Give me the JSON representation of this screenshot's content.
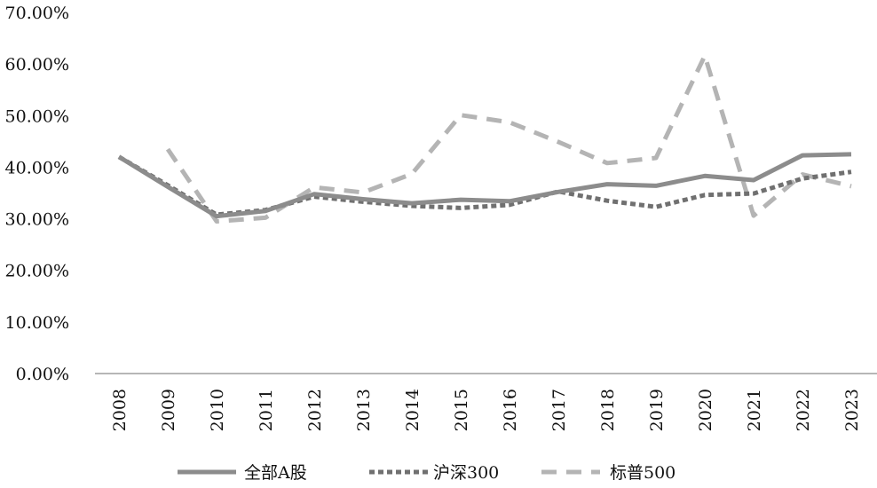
{
  "chart_data": {
    "type": "line",
    "categories": [
      "2008",
      "2009",
      "2010",
      "2011",
      "2012",
      "2013",
      "2014",
      "2015",
      "2016",
      "2017",
      "2018",
      "2019",
      "2020",
      "2021",
      "2022",
      "2023"
    ],
    "ylim": [
      0,
      70
    ],
    "yticks": [
      "0.00%",
      "10.00%",
      "20.00%",
      "30.00%",
      "40.00%",
      "50.00%",
      "60.00%",
      "70.00%"
    ],
    "grid": false,
    "legend_position": "bottom",
    "series": [
      {
        "name": "全部A股",
        "style": "solid",
        "color": "#8c8c8c",
        "values": [
          42.0,
          36.2,
          30.5,
          31.5,
          34.8,
          33.8,
          33.0,
          33.7,
          33.4,
          35.2,
          36.7,
          36.4,
          38.3,
          37.5,
          42.3,
          42.5
        ]
      },
      {
        "name": "沪深300",
        "style": "dotted",
        "color": "#707070",
        "values": [
          42.0,
          36.5,
          30.8,
          31.7,
          34.3,
          33.3,
          32.5,
          32.1,
          32.7,
          35.3,
          33.5,
          32.3,
          34.6,
          34.9,
          37.8,
          39.1
        ]
      },
      {
        "name": "标普500",
        "style": "dashed",
        "color": "#b4b4b4",
        "values": [
          null,
          43.5,
          29.5,
          30.2,
          36.1,
          35.1,
          38.7,
          50.1,
          48.7,
          44.9,
          40.8,
          41.8,
          61.6,
          30.6,
          38.6,
          36.3
        ]
      }
    ]
  }
}
